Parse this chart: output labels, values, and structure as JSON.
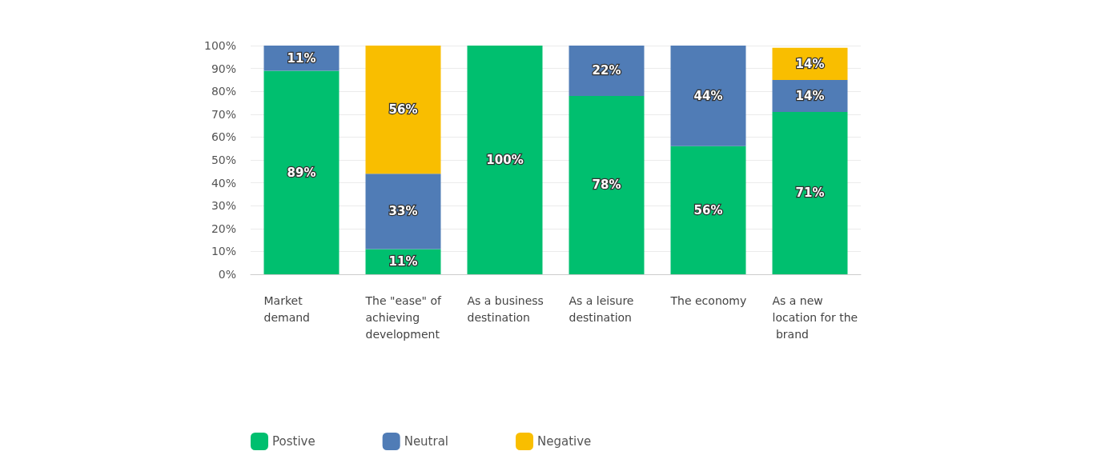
{
  "chart_data": {
    "type": "bar",
    "stacked": true,
    "categories": [
      "Market demand",
      "The \"ease\" of achieving development",
      "As a business destination",
      "As a leisure destination",
      "The economy",
      "As a new location for the brand"
    ],
    "series": [
      {
        "name": "Postive",
        "color": "#00bf6f",
        "values": [
          89,
          11,
          100,
          78,
          56,
          71
        ],
        "value_labels": [
          "89%",
          "11%",
          "100%",
          "78%",
          "56%",
          "71%"
        ]
      },
      {
        "name": "Neutral",
        "color": "#507cb6",
        "values": [
          11,
          33,
          null,
          22,
          44,
          14
        ],
        "value_labels": [
          "11%",
          "33%",
          null,
          "22%",
          "44%",
          "14%"
        ]
      },
      {
        "name": "Negative",
        "color": "#f9be00",
        "values": [
          null,
          56,
          null,
          null,
          null,
          14
        ],
        "value_labels": [
          null,
          "56%",
          null,
          null,
          null,
          "14%"
        ]
      }
    ],
    "ylim": [
      0,
      100
    ],
    "yticks": [
      {
        "value": 0,
        "label": "0%"
      },
      {
        "value": 10,
        "label": "10%"
      },
      {
        "value": 20,
        "label": "20%"
      },
      {
        "value": 30,
        "label": "30%"
      },
      {
        "value": 40,
        "label": "40%"
      },
      {
        "value": 50,
        "label": "50%"
      },
      {
        "value": 60,
        "label": "60%"
      },
      {
        "value": 70,
        "label": "70%"
      },
      {
        "value": 80,
        "label": "80%"
      },
      {
        "value": 90,
        "label": "90%"
      },
      {
        "value": 100,
        "label": "100%"
      }
    ],
    "grid": "y",
    "legend": "bottom left"
  }
}
